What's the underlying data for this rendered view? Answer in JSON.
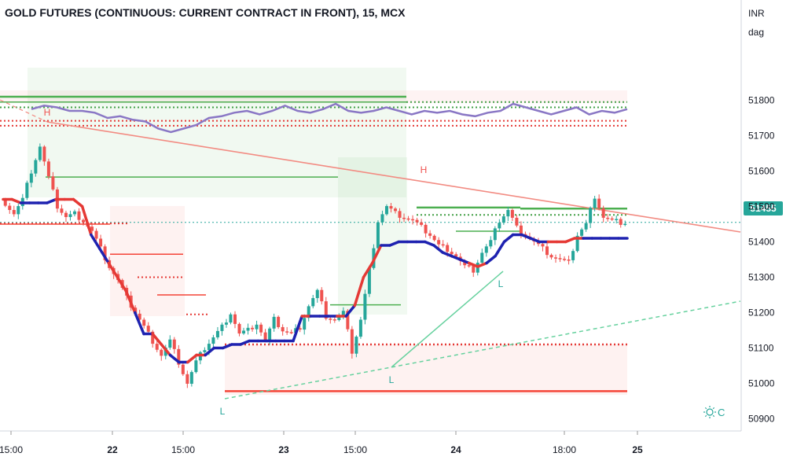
{
  "header": {
    "title": "GOLD FUTURES (CONTINUOUS: CURRENT CONTRACT IN FRONT), 15, MCX"
  },
  "axis": {
    "currency": "INR",
    "unit": "dag"
  },
  "last_price": "51455",
  "footer_icon": "sun-c-icon",
  "colors": {
    "bull": "#26a69a",
    "bear": "#ef5350",
    "support_line": "#4caf50",
    "resistance_line": "#f44336",
    "trail_up": "#1e22b0",
    "trail_down": "#e53935",
    "oscillator": "#8a77c5",
    "trend_red": "#f28b82",
    "trend_green": "#66d19e",
    "grid_dot_green": "#43a047",
    "grid_dot_red": "#e53935"
  },
  "chart_data": {
    "type": "candlestick",
    "title": "GOLD FUTURES (CONTINUOUS: CURRENT CONTRACT IN FRONT), 15, MCX",
    "ylim": [
      50870,
      51870
    ],
    "y_ticks": [
      51800,
      51700,
      51600,
      51500,
      51400,
      51300,
      51200,
      51100,
      51000,
      50900
    ],
    "x_ticks": [
      "15:00",
      "22",
      "15:00",
      "23",
      "15:00",
      "24",
      "18:00",
      "25"
    ],
    "last_price": 51455,
    "markers": [
      {
        "label": "H",
        "kind": "high"
      },
      {
        "label": "H",
        "kind": "high"
      },
      {
        "label": "L",
        "kind": "low"
      },
      {
        "label": "L",
        "kind": "low"
      },
      {
        "label": "L",
        "kind": "low"
      }
    ],
    "close_path": [
      51510,
      51480,
      51520,
      51600,
      51670,
      51580,
      51500,
      51470,
      51480,
      51460,
      51430,
      51380,
      51330,
      51290,
      51240,
      51200,
      51160,
      51120,
      51080,
      51120,
      51060,
      51000,
      51060,
      51100,
      51130,
      51160,
      51200,
      51140,
      51150,
      51170,
      51120,
      51180,
      51150,
      51140,
      51160,
      51220,
      51260,
      51190,
      51180,
      51200,
      51090,
      51180,
      51320,
      51460,
      51500,
      51480,
      51470,
      51460,
      51440,
      51420,
      51390,
      51380,
      51360,
      51330,
      51320,
      51370,
      51400,
      51460,
      51490,
      51440,
      51420,
      51400,
      51380,
      51360,
      51350,
      51340,
      51420,
      51450,
      51530,
      51470,
      51460,
      51455
    ],
    "trailing_stop": [
      51520,
      51520,
      51510,
      51510,
      51510,
      51510,
      51520,
      51520,
      51520,
      51500,
      51420,
      51380,
      51340,
      51300,
      51260,
      51200,
      51140,
      51140,
      51110,
      51080,
      51060,
      51060,
      51080,
      51080,
      51100,
      51100,
      51110,
      51110,
      51120,
      51120,
      51120,
      51120,
      51120,
      51120,
      51190,
      51190,
      51190,
      51190,
      51190,
      51190,
      51220,
      51300,
      51340,
      51390,
      51390,
      51400,
      51400,
      51400,
      51400,
      51390,
      51370,
      51360,
      51350,
      51340,
      51330,
      51340,
      51360,
      51400,
      51420,
      51420,
      51410,
      51400,
      51400,
      51400,
      51400,
      51410,
      51410,
      51410,
      51410,
      51410,
      51410,
      51410
    ],
    "oscillator_path": [
      51775,
      51785,
      51780,
      51770,
      51770,
      51765,
      51750,
      51755,
      51745,
      51740,
      51720,
      51710,
      51720,
      51730,
      51750,
      51755,
      51765,
      51770,
      51760,
      51770,
      51785,
      51770,
      51765,
      51775,
      51790,
      51770,
      51765,
      51770,
      51780,
      51770,
      51760,
      51770,
      51765,
      51770,
      51760,
      51755,
      51765,
      51770,
      51790,
      51780,
      51770,
      51760,
      51770,
      51780,
      51760,
      51770,
      51765,
      51775
    ],
    "levels": [
      51800,
      51780,
      51765,
      51740,
      51730,
      51580,
      51500,
      51490,
      51475,
      51460,
      51430,
      51365,
      51300,
      51240,
      51190,
      51110,
      50980
    ]
  }
}
